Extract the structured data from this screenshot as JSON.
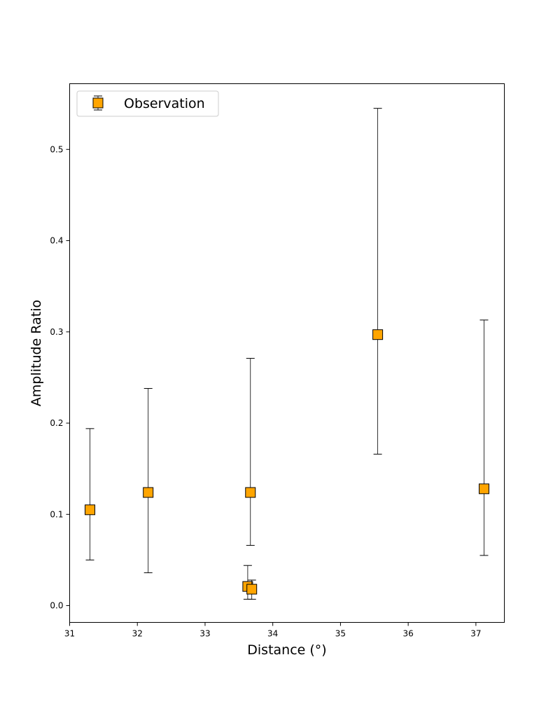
{
  "chart_data": {
    "type": "scatter",
    "title": "",
    "xlabel": "Distance (°)",
    "ylabel": "Amplitude Ratio",
    "xlim": [
      31,
      37.42
    ],
    "ylim": [
      -0.0184,
      0.572
    ],
    "xticks": [
      31,
      32,
      33,
      34,
      35,
      36,
      37
    ],
    "yticks": [
      0.0,
      0.1,
      0.2,
      0.3,
      0.4,
      0.5
    ],
    "grid": false,
    "legend_position": "top-left",
    "series": [
      {
        "name": "Observation",
        "marker": "square",
        "color": "#FFA500",
        "edge_color": "#000000",
        "points": [
          {
            "x": 31.3,
            "y": 0.105,
            "y_low": 0.05,
            "y_high": 0.194
          },
          {
            "x": 32.16,
            "y": 0.124,
            "y_low": 0.036,
            "y_high": 0.238
          },
          {
            "x": 33.67,
            "y": 0.124,
            "y_low": 0.066,
            "y_high": 0.271
          },
          {
            "x": 33.63,
            "y": 0.021,
            "y_low": 0.007,
            "y_high": 0.044
          },
          {
            "x": 33.69,
            "y": 0.018,
            "y_low": 0.007,
            "y_high": 0.028
          },
          {
            "x": 35.55,
            "y": 0.297,
            "y_low": 0.166,
            "y_high": 0.545
          },
          {
            "x": 37.12,
            "y": 0.128,
            "y_low": 0.055,
            "y_high": 0.313
          }
        ]
      }
    ]
  }
}
